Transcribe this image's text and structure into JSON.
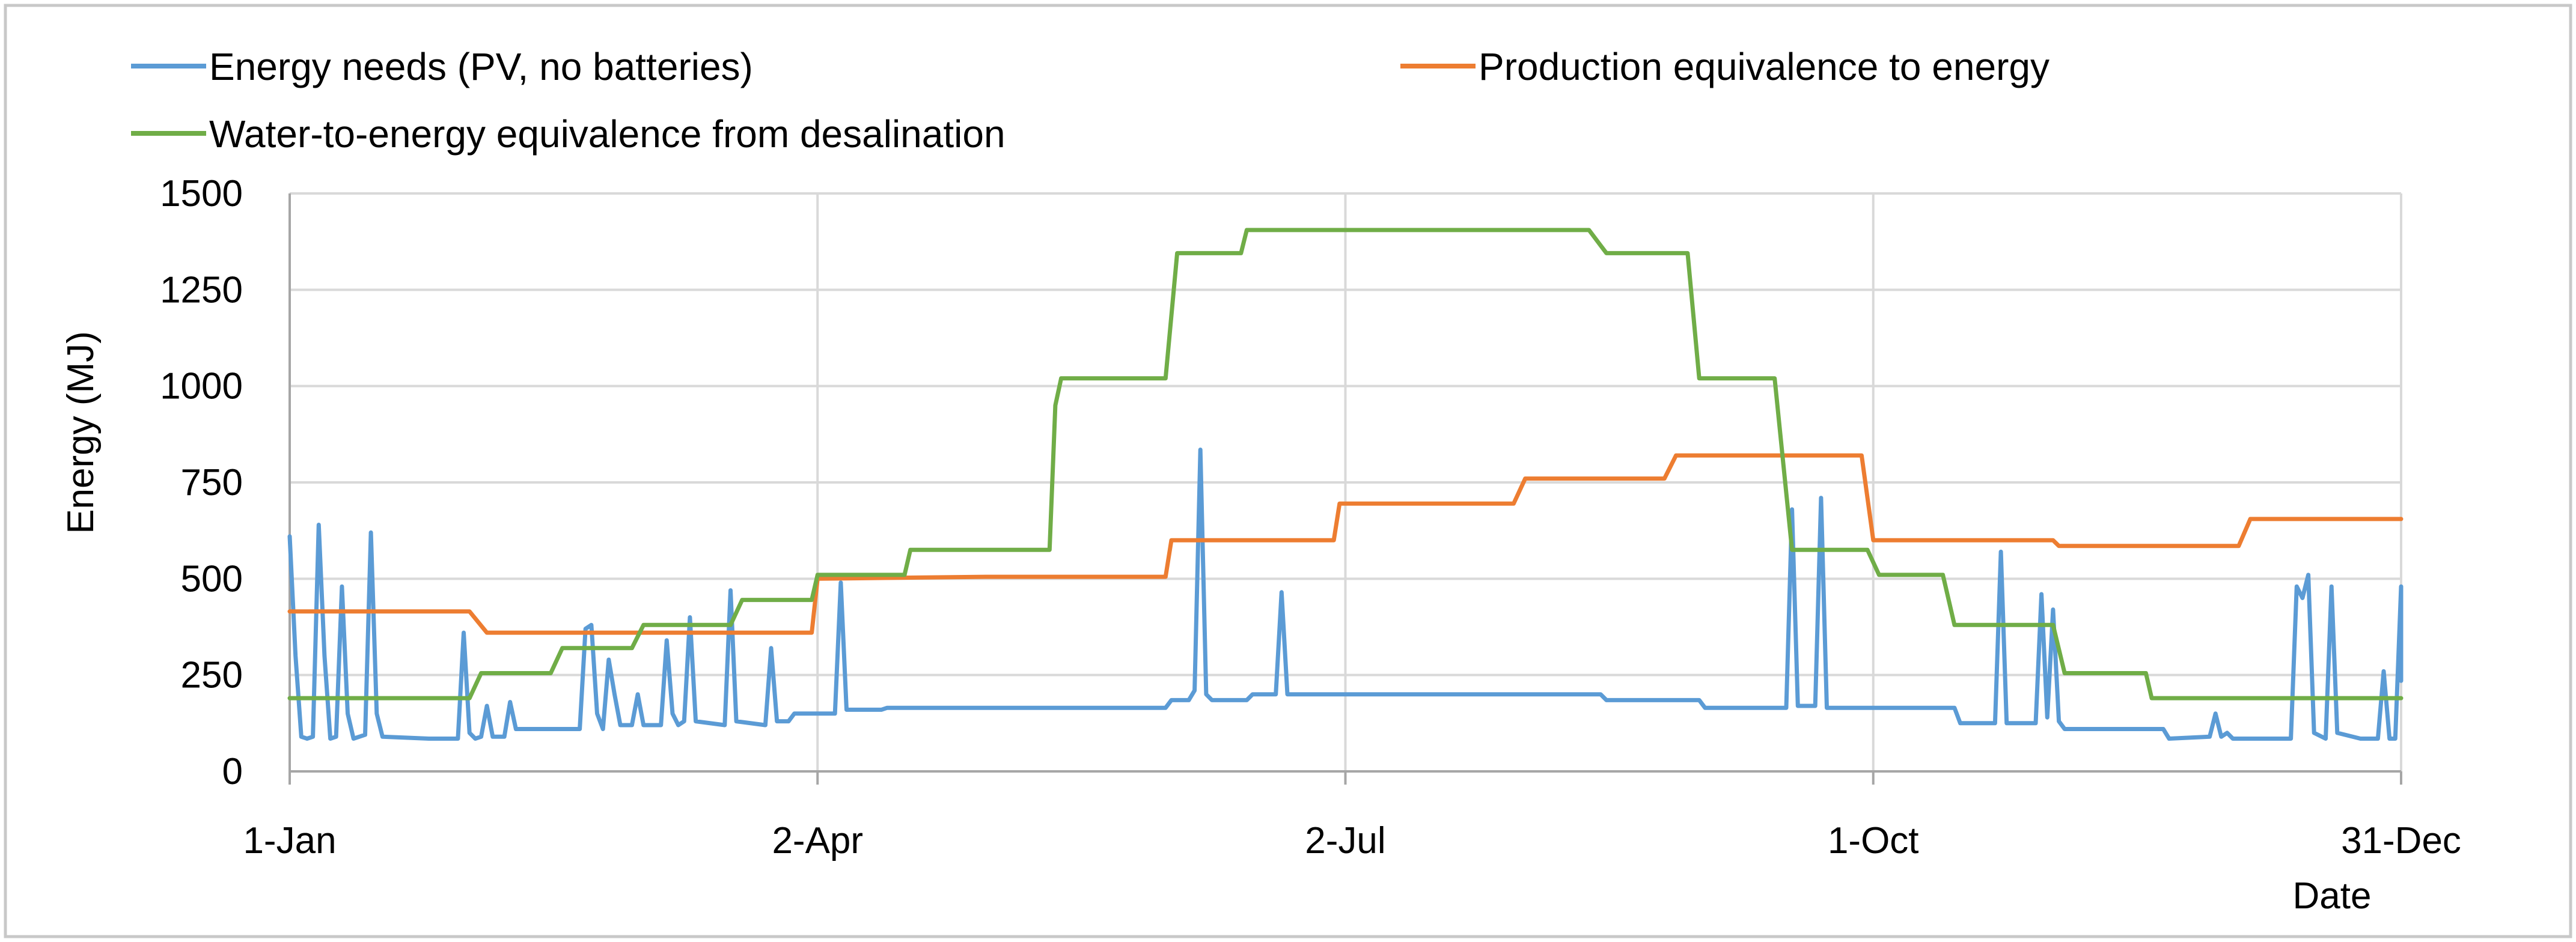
{
  "chart_data": {
    "type": "line",
    "title": "",
    "xlabel": "Date",
    "ylabel": "Energy (MJ)",
    "xlim": [
      "1-Jan",
      "31-Dec"
    ],
    "ylim": [
      0,
      1500
    ],
    "x_ticks": [
      "1-Jan",
      "2-Apr",
      "2-Jul",
      "1-Oct",
      "31-Dec"
    ],
    "y_ticks": [
      "0",
      "250",
      "500",
      "750",
      "1000",
      "1250",
      "1500"
    ],
    "grid": true,
    "legend_position": "top",
    "series": [
      {
        "name": "Energy needs (PV, no batteries)",
        "color": "#5B9BD5",
        "points": [
          [
            "1-Jan",
            610
          ],
          [
            "2-Jan",
            300
          ],
          [
            "3-Jan",
            90
          ],
          [
            "4-Jan",
            85
          ],
          [
            "5-Jan",
            90
          ],
          [
            "6-Jan",
            640
          ],
          [
            "7-Jan",
            300
          ],
          [
            "8-Jan",
            85
          ],
          [
            "9-Jan",
            90
          ],
          [
            "10-Jan",
            480
          ],
          [
            "11-Jan",
            150
          ],
          [
            "12-Jan",
            85
          ],
          [
            "13-Jan",
            90
          ],
          [
            "14-Jan",
            95
          ],
          [
            "15-Jan",
            620
          ],
          [
            "16-Jan",
            150
          ],
          [
            "17-Jan",
            90
          ],
          [
            "25-Jan",
            85
          ],
          [
            "30-Jan",
            85
          ],
          [
            "31-Jan",
            360
          ],
          [
            "1-Feb",
            100
          ],
          [
            "2-Feb",
            85
          ],
          [
            "3-Feb",
            90
          ],
          [
            "4-Feb",
            170
          ],
          [
            "5-Feb",
            90
          ],
          [
            "6-Feb",
            90
          ],
          [
            "7-Feb",
            90
          ],
          [
            "8-Feb",
            180
          ],
          [
            "9-Feb",
            110
          ],
          [
            "20-Feb",
            110
          ],
          [
            "21-Feb",
            370
          ],
          [
            "22-Feb",
            380
          ],
          [
            "23-Feb",
            150
          ],
          [
            "24-Feb",
            110
          ],
          [
            "25-Feb",
            290
          ],
          [
            "26-Feb",
            200
          ],
          [
            "27-Feb",
            120
          ],
          [
            "1-Mar",
            120
          ],
          [
            "2-Mar",
            200
          ],
          [
            "3-Mar",
            120
          ],
          [
            "6-Mar",
            120
          ],
          [
            "7-Mar",
            340
          ],
          [
            "8-Mar",
            150
          ],
          [
            "9-Mar",
            120
          ],
          [
            "10-Mar",
            130
          ],
          [
            "11-Mar",
            400
          ],
          [
            "12-Mar",
            130
          ],
          [
            "17-Mar",
            120
          ],
          [
            "18-Mar",
            470
          ],
          [
            "19-Mar",
            130
          ],
          [
            "24-Mar",
            120
          ],
          [
            "25-Mar",
            320
          ],
          [
            "26-Mar",
            130
          ],
          [
            "28-Mar",
            130
          ],
          [
            "29-Mar",
            150
          ],
          [
            "5-Apr",
            150
          ],
          [
            "6-Apr",
            490
          ],
          [
            "7-Apr",
            160
          ],
          [
            "13-Apr",
            160
          ],
          [
            "14-Apr",
            165
          ],
          [
            "1-Jun",
            165
          ],
          [
            "2-Jun",
            185
          ],
          [
            "5-Jun",
            185
          ],
          [
            "6-Jun",
            210
          ],
          [
            "7-Jun",
            835
          ],
          [
            "8-Jun",
            200
          ],
          [
            "9-Jun",
            185
          ],
          [
            "15-Jun",
            185
          ],
          [
            "16-Jun",
            200
          ],
          [
            "20-Jun",
            200
          ],
          [
            "21-Jun",
            465
          ],
          [
            "22-Jun",
            200
          ],
          [
            "15-Aug",
            200
          ],
          [
            "16-Aug",
            185
          ],
          [
            "1-Sep",
            185
          ],
          [
            "2-Sep",
            165
          ],
          [
            "16-Sep",
            165
          ],
          [
            "17-Sep",
            680
          ],
          [
            "18-Sep",
            170
          ],
          [
            "21-Sep",
            170
          ],
          [
            "22-Sep",
            710
          ],
          [
            "23-Sep",
            165
          ],
          [
            "15-Oct",
            165
          ],
          [
            "16-Oct",
            125
          ],
          [
            "22-Oct",
            125
          ],
          [
            "23-Oct",
            570
          ],
          [
            "24-Oct",
            125
          ],
          [
            "29-Oct",
            125
          ],
          [
            "30-Oct",
            460
          ],
          [
            "31-Oct",
            140
          ],
          [
            "1-Nov",
            420
          ],
          [
            "2-Nov",
            130
          ],
          [
            "3-Nov",
            110
          ],
          [
            "20-Nov",
            110
          ],
          [
            "21-Nov",
            85
          ],
          [
            "28-Nov",
            90
          ],
          [
            "29-Nov",
            150
          ],
          [
            "30-Nov",
            90
          ],
          [
            "1-Dec",
            100
          ],
          [
            "2-Dec",
            85
          ],
          [
            "12-Dec",
            85
          ],
          [
            "13-Dec",
            480
          ],
          [
            "14-Dec",
            450
          ],
          [
            "15-Dec",
            510
          ],
          [
            "16-Dec",
            100
          ],
          [
            "18-Dec",
            85
          ],
          [
            "19-Dec",
            480
          ],
          [
            "20-Dec",
            100
          ],
          [
            "24-Dec",
            85
          ],
          [
            "27-Dec",
            85
          ],
          [
            "28-Dec",
            260
          ],
          [
            "29-Dec",
            85
          ],
          [
            "30-Dec",
            85
          ],
          [
            "31-Dec",
            480
          ],
          [
            "31-Dec",
            235
          ]
        ]
      },
      {
        "name": "Production equivalence to energy",
        "color": "#ED7D31",
        "points": [
          [
            "1-Jan",
            415
          ],
          [
            "1-Feb",
            415
          ],
          [
            "4-Feb",
            360
          ],
          [
            "1-Apr",
            360
          ],
          [
            "2-Apr",
            500
          ],
          [
            "1-May",
            505
          ],
          [
            "1-Jun",
            505
          ],
          [
            "2-Jun",
            600
          ],
          [
            "30-Jun",
            600
          ],
          [
            "1-Jul",
            695
          ],
          [
            "31-Jul",
            695
          ],
          [
            "2-Aug",
            760
          ],
          [
            "26-Aug",
            760
          ],
          [
            "28-Aug",
            820
          ],
          [
            "29-Sep",
            820
          ],
          [
            "1-Oct",
            600
          ],
          [
            "1-Nov",
            600
          ],
          [
            "2-Nov",
            585
          ],
          [
            "3-Dec",
            585
          ],
          [
            "5-Dec",
            655
          ],
          [
            "31-Dec",
            655
          ]
        ]
      },
      {
        "name": "Water-to-energy equivalence from desalination",
        "color": "#70AD47",
        "points": [
          [
            "1-Jan",
            190
          ],
          [
            "1-Feb",
            190
          ],
          [
            "3-Feb",
            255
          ],
          [
            "15-Feb",
            255
          ],
          [
            "17-Feb",
            320
          ],
          [
            "1-Mar",
            320
          ],
          [
            "3-Mar",
            380
          ],
          [
            "18-Mar",
            380
          ],
          [
            "20-Mar",
            445
          ],
          [
            "1-Apr",
            445
          ],
          [
            "2-Apr",
            510
          ],
          [
            "17-Apr",
            510
          ],
          [
            "18-Apr",
            575
          ],
          [
            "12-May",
            575
          ],
          [
            "13-May",
            950
          ],
          [
            "14-May",
            1020
          ],
          [
            "1-Jun",
            1020
          ],
          [
            "3-Jun",
            1345
          ],
          [
            "14-Jun",
            1345
          ],
          [
            "15-Jun",
            1405
          ],
          [
            "13-Aug",
            1405
          ],
          [
            "16-Aug",
            1345
          ],
          [
            "30-Aug",
            1345
          ],
          [
            "1-Sep",
            1020
          ],
          [
            "14-Sep",
            1020
          ],
          [
            "17-Sep",
            575
          ],
          [
            "30-Sep",
            575
          ],
          [
            "2-Oct",
            510
          ],
          [
            "13-Oct",
            510
          ],
          [
            "15-Oct",
            380
          ],
          [
            "1-Nov",
            380
          ],
          [
            "3-Nov",
            255
          ],
          [
            "17-Nov",
            255
          ],
          [
            "18-Nov",
            190
          ],
          [
            "31-Dec",
            190
          ]
        ]
      }
    ]
  }
}
